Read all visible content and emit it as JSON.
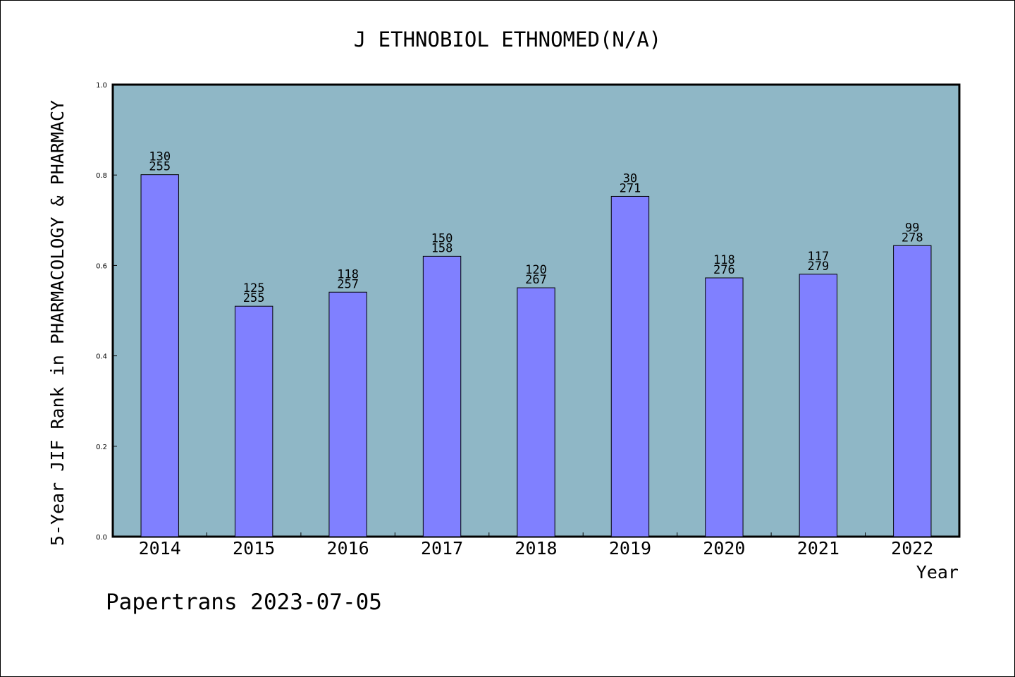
{
  "chart_data": {
    "type": "bar",
    "title": "J ETHNOBIOL ETHNOMED(N/A)",
    "xlabel": "Year",
    "ylabel": "5-Year JIF Rank in PHARMACOLOGY & PHARMACY",
    "categories": [
      "2014",
      "2015",
      "2016",
      "2017",
      "2018",
      "2019",
      "2020",
      "2021",
      "2022"
    ],
    "values": [
      0.8008,
      0.5098,
      0.5409,
      0.6203,
      0.5506,
      0.7528,
      0.5725,
      0.5806,
      0.6439
    ],
    "ranks": [
      "130",
      "125",
      "118",
      "150",
      "120",
      "30",
      "118",
      "117",
      "99"
    ],
    "totals": [
      "255",
      "255",
      "257",
      "158",
      "267",
      "271",
      "276",
      "279",
      "278"
    ],
    "ylim": [
      0,
      1.0
    ],
    "yticks": [
      "0.0",
      "0.2",
      "0.4",
      "0.6",
      "0.8",
      "1.0"
    ],
    "grid": false,
    "colors": {
      "bar": "#8080ff",
      "plot_background": "#8fb7c6",
      "axis": "#000000"
    }
  },
  "footer": {
    "watermark": "Papertrans 2023-07-05"
  }
}
